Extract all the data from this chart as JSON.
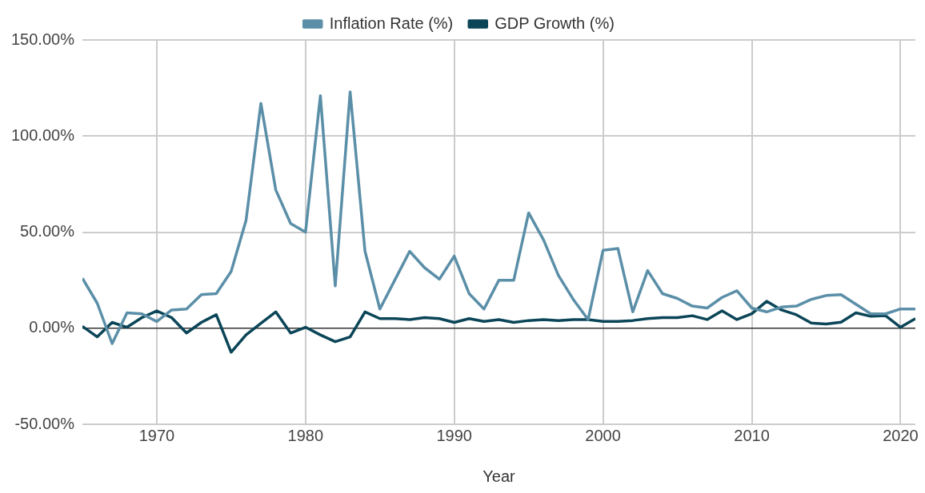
{
  "chart_data": {
    "type": "line",
    "xlabel": "Year",
    "x": [
      1965,
      1966,
      1967,
      1968,
      1969,
      1970,
      1971,
      1972,
      1973,
      1974,
      1975,
      1976,
      1977,
      1978,
      1979,
      1980,
      1981,
      1982,
      1983,
      1984,
      1985,
      1986,
      1987,
      1988,
      1989,
      1990,
      1991,
      1992,
      1993,
      1994,
      1995,
      1996,
      1997,
      1998,
      1999,
      2000,
      2001,
      2002,
      2003,
      2004,
      2005,
      2006,
      2007,
      2008,
      2009,
      2010,
      2011,
      2012,
      2013,
      2014,
      2015,
      2016,
      2017,
      2018,
      2019,
      2020,
      2021
    ],
    "series": [
      {
        "name": "Inflation Rate (%)",
        "color": "#5b8fa8",
        "values": [
          26,
          13,
          -8,
          8,
          7.5,
          3.5,
          9.5,
          10,
          17.5,
          18,
          29.5,
          56,
          117,
          72,
          54.5,
          50,
          121,
          22,
          123,
          40,
          10,
          25,
          40,
          31.5,
          25.5,
          37.5,
          18,
          10,
          25,
          25,
          60,
          46,
          27.5,
          15,
          4.5,
          40.5,
          41.5,
          8.5,
          30,
          18,
          15.5,
          11.5,
          10.5,
          16,
          19.5,
          10.5,
          8.5,
          11,
          11.5,
          15,
          17,
          17.5,
          12.5,
          7.5,
          7.5,
          10,
          10
        ]
      },
      {
        "name": "GDP Growth (%)",
        "color": "#0b4558",
        "values": [
          1,
          -4.5,
          3,
          0.5,
          5.5,
          9,
          5.5,
          -2.5,
          3,
          7,
          -12.5,
          -3.5,
          2.5,
          8.5,
          -2.5,
          0.5,
          -3.5,
          -7,
          -4.5,
          8.5,
          5,
          5,
          4.5,
          5.5,
          5,
          3,
          5,
          3.5,
          4.5,
          3,
          4,
          4.5,
          4,
          4.5,
          4.5,
          3.5,
          3.5,
          4,
          5,
          5.5,
          5.5,
          6.5,
          4.5,
          9,
          4.5,
          7.5,
          14,
          9.5,
          7,
          2.7,
          2.2,
          3.1,
          8,
          6.2,
          6.5,
          0.5,
          5
        ]
      }
    ],
    "xlim": [
      1965,
      2021
    ],
    "xticks": [
      1970,
      1980,
      1990,
      2000,
      2010,
      2020
    ],
    "ylim": [
      -50,
      150
    ],
    "yticks": [
      {
        "value": -50,
        "label": "-50.00%"
      },
      {
        "value": 0,
        "label": "0.00%"
      },
      {
        "value": 50,
        "label": "50.00%"
      },
      {
        "value": 100,
        "label": "100.00%"
      },
      {
        "value": 150,
        "label": "150.00%"
      }
    ],
    "grid": true,
    "legend": "top",
    "marker": "none",
    "line_style": "solid"
  }
}
